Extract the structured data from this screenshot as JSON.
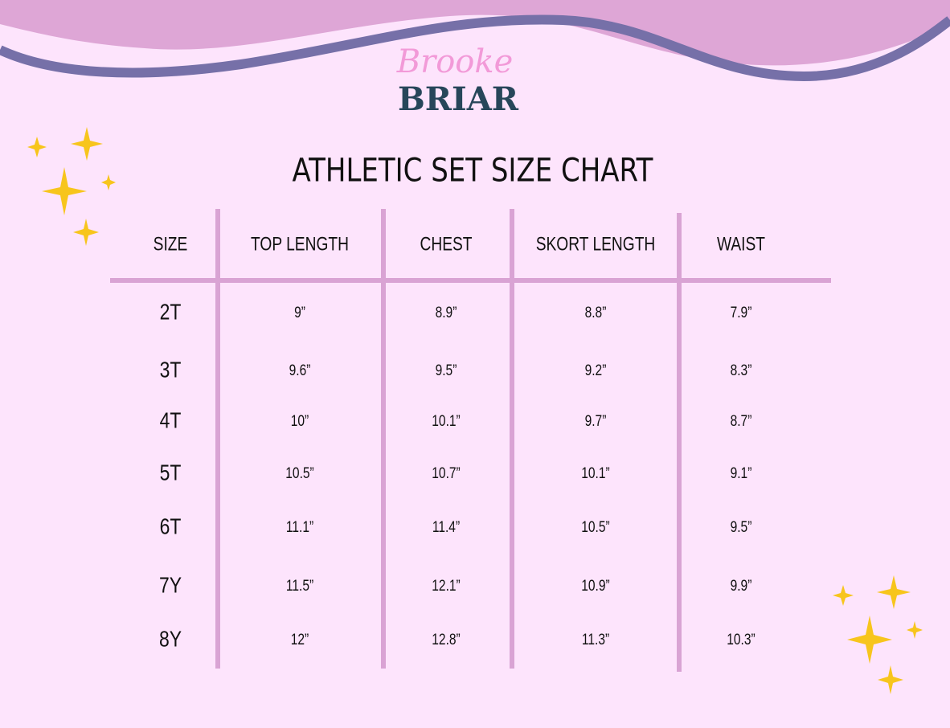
{
  "logo": {
    "top": "Brooke",
    "bottom": "BRIAR"
  },
  "title": "ATHLETIC SET SIZE CHART",
  "table": {
    "headers": [
      "SIZE",
      "TOP LENGTH",
      "CHEST",
      "SKORT LENGTH",
      "WAIST"
    ],
    "rows": [
      [
        "2T",
        "9”",
        "8.9”",
        "8.8”",
        "7.9”"
      ],
      [
        "3T",
        "9.6”",
        "9.5”",
        "9.2”",
        "8.3”"
      ],
      [
        "4T",
        "10”",
        "10.1”",
        "9.7”",
        "8.7”"
      ],
      [
        "5T",
        "10.5”",
        "10.7”",
        "10.1”",
        "9.1”"
      ],
      [
        "6T",
        "11.1”",
        "11.4”",
        "10.5”",
        "9.5”"
      ],
      [
        "7Y",
        "11.5”",
        "12.1”",
        "10.9”",
        "9.9”"
      ],
      [
        "8Y",
        "12”",
        "12.8”",
        "11.3”",
        "10.3”"
      ]
    ]
  }
}
